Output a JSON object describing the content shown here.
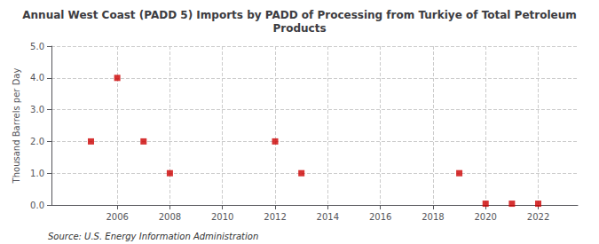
{
  "chart_data": {
    "type": "scatter",
    "title": "Annual West Coast (PADD 5) Imports by PADD of Processing from Turkiye of Total Petroleum\nProducts",
    "ylabel": "Thousand Barrels per Day",
    "annotation": "Source: U.S. Energy Information Administration",
    "x": [
      2005,
      2006,
      2007,
      2008,
      2012,
      2013,
      2019,
      2020,
      2021,
      2022
    ],
    "values": [
      2.0,
      4.0,
      2.0,
      1.0,
      2.0,
      1.0,
      1.0,
      0.04,
      0.04,
      0.04
    ],
    "color": "#cc0000",
    "marker": "square",
    "xlim": [
      2003.5,
      2023.5
    ],
    "xticks": [
      2006,
      2008,
      2010,
      2012,
      2014,
      2016,
      2018,
      2020,
      2022
    ],
    "ylim": [
      0.0,
      5.0
    ],
    "yticks": [
      {
        "value": 0,
        "label": "0.0"
      },
      {
        "value": 1,
        "label": "1.0"
      },
      {
        "value": 2,
        "label": "2.0"
      },
      {
        "value": 3,
        "label": "3.0"
      },
      {
        "value": 4,
        "label": "4.0"
      },
      {
        "value": 5,
        "label": "5.0"
      }
    ],
    "grid": true
  }
}
